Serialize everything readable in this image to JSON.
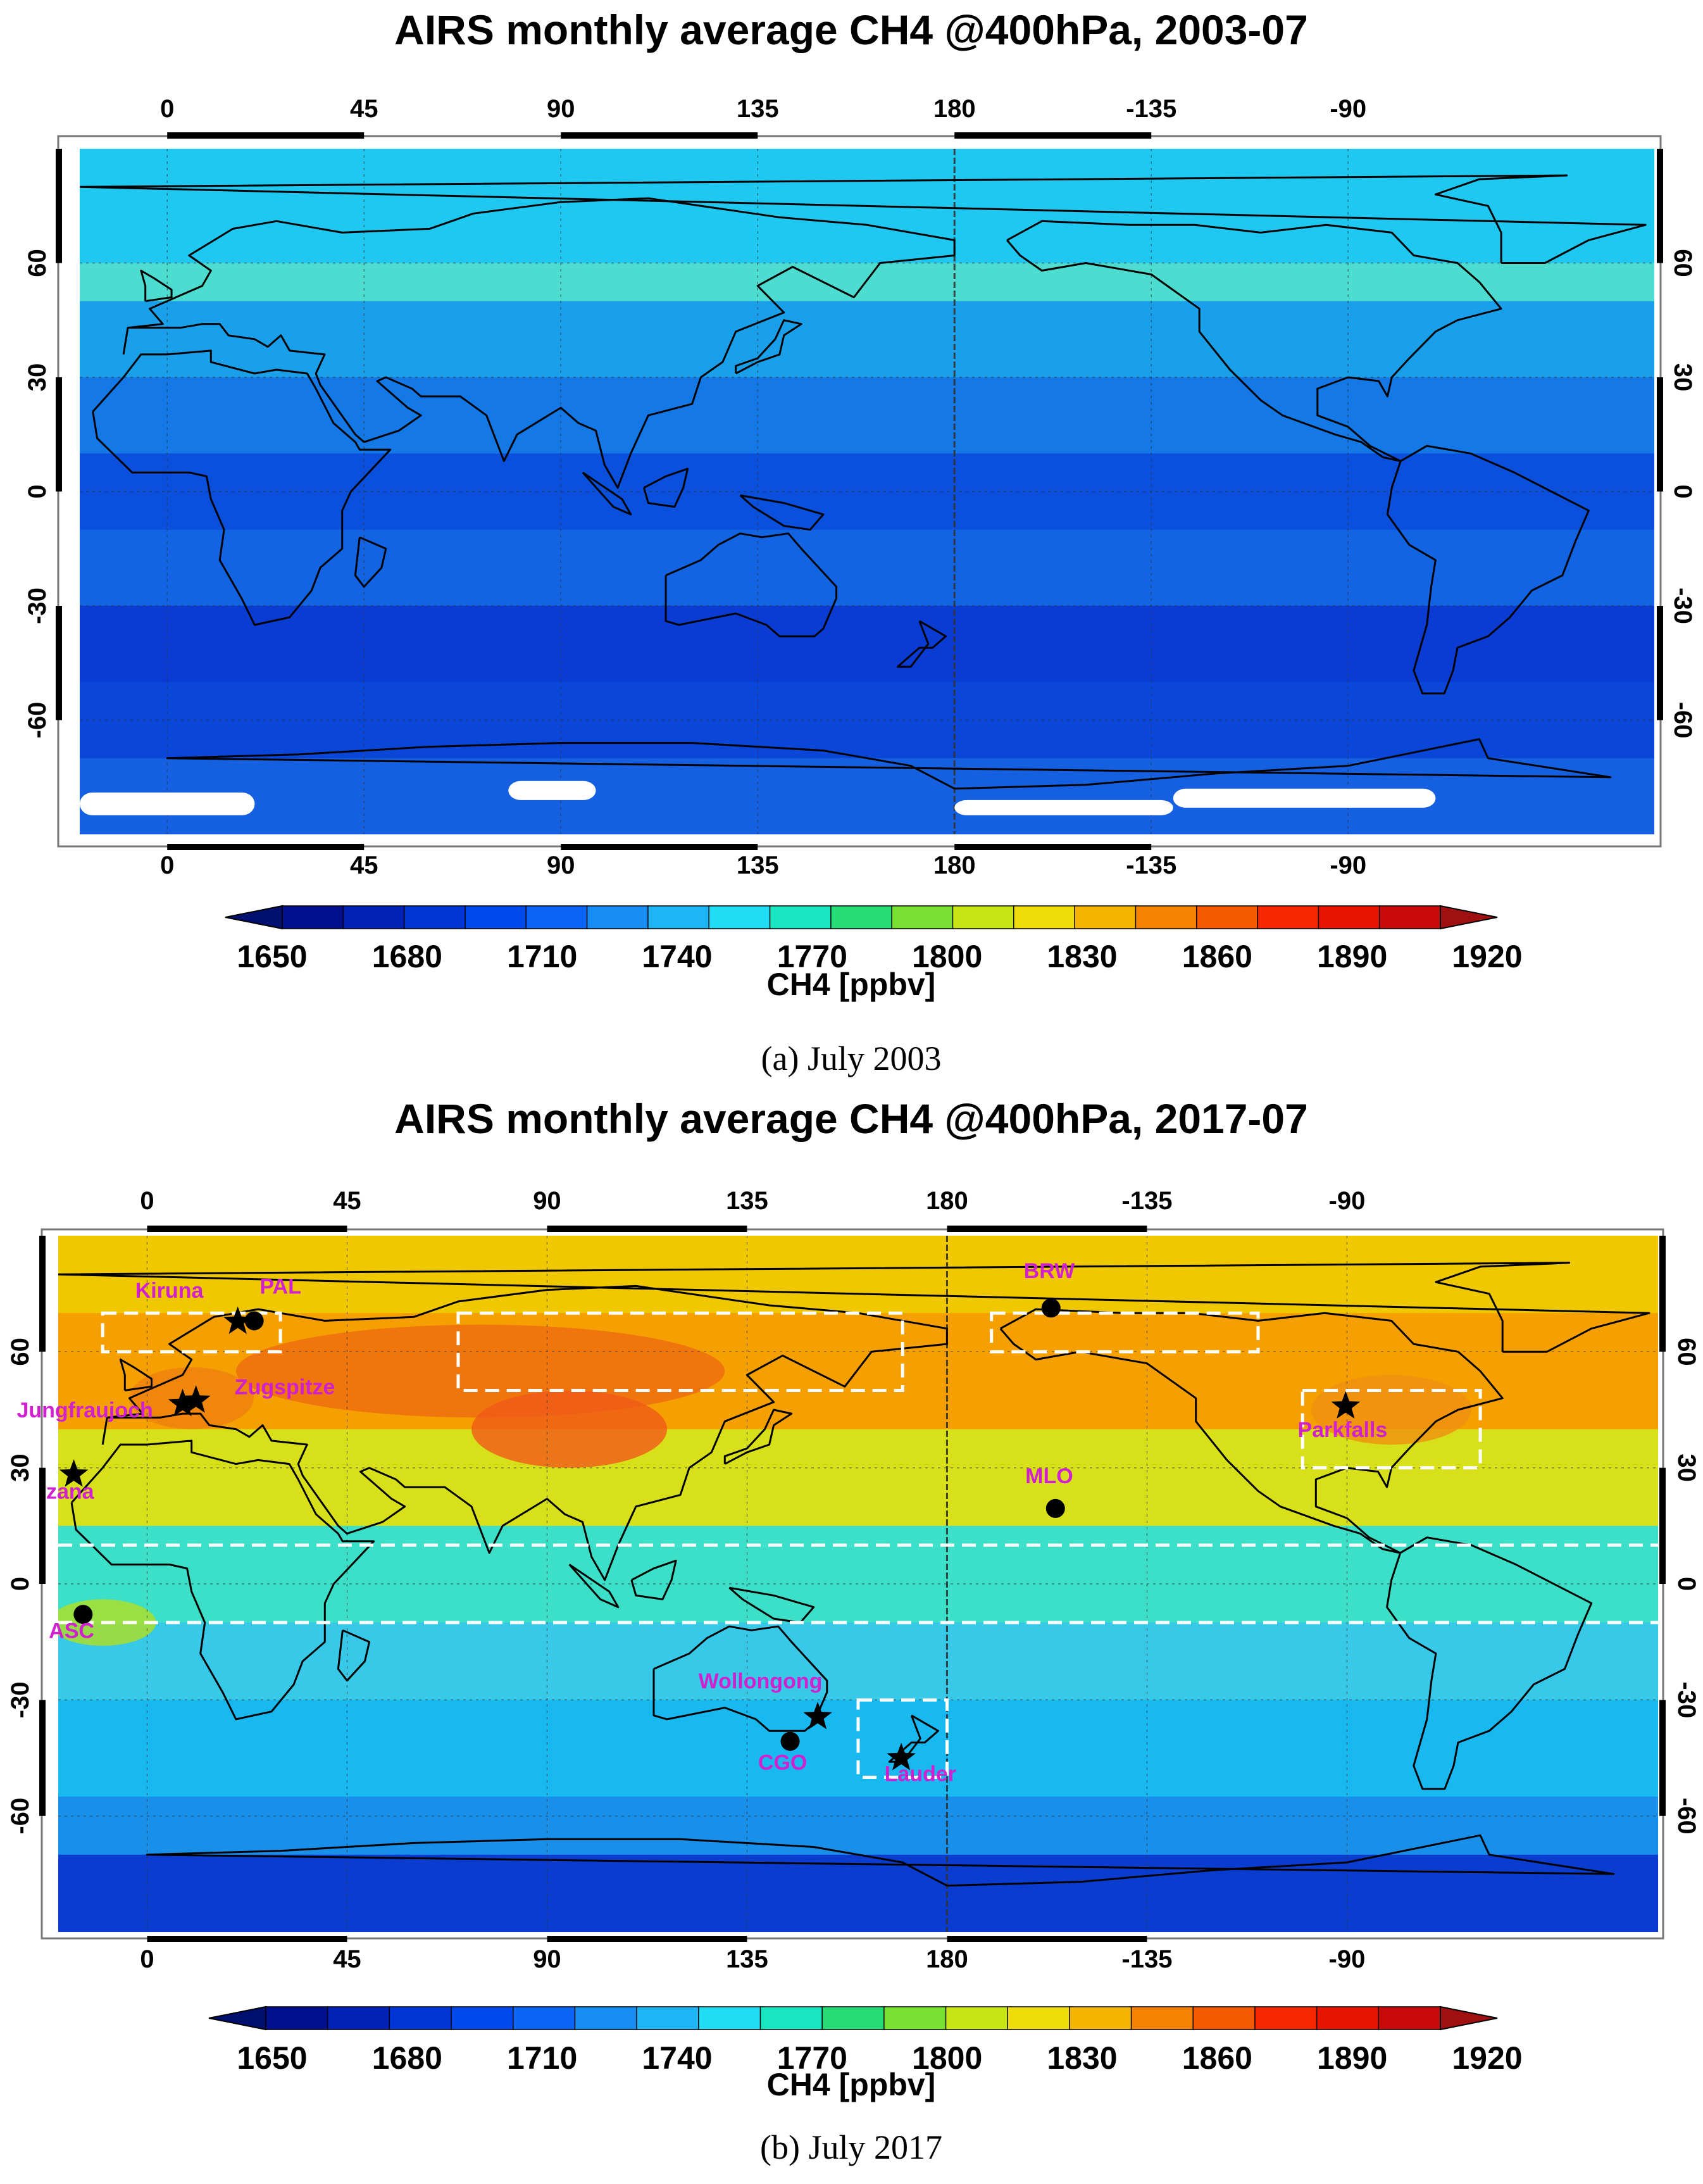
{
  "panels": [
    {
      "id": "a",
      "title": "AIRS monthly average CH4 @400hPa, 2003-07",
      "caption": "(a) July 2003",
      "lon_ticks": [
        "0",
        "45",
        "90",
        "135",
        "180",
        "-135",
        "-90"
      ],
      "lat_ticks": [
        "60",
        "30",
        "0",
        "-30",
        "-60"
      ],
      "bands": [
        {
          "lat": [
            60,
            90
          ],
          "color": "#1ec8f0"
        },
        {
          "lat": [
            50,
            60
          ],
          "color": "#4ddcd0"
        },
        {
          "lat": [
            30,
            50
          ],
          "color": "#1aa0ea"
        },
        {
          "lat": [
            10,
            30
          ],
          "color": "#1478e6"
        },
        {
          "lat": [
            -10,
            10
          ],
          "color": "#0a50dc"
        },
        {
          "lat": [
            -30,
            -10
          ],
          "color": "#1264e2"
        },
        {
          "lat": [
            -50,
            -30
          ],
          "color": "#0a3cd4"
        },
        {
          "lat": [
            -70,
            -50
          ],
          "color": "#0a46d8"
        },
        {
          "lat": [
            -90,
            -70
          ],
          "color": "#1460e0"
        }
      ],
      "blobs": [],
      "stations": [],
      "boxes": [],
      "dashed_lats": []
    },
    {
      "id": "b",
      "title": "AIRS monthly average CH4 @400hPa, 2017-07",
      "caption": "(b) July 2017",
      "lon_ticks": [
        "0",
        "45",
        "90",
        "135",
        "180",
        "-135",
        "-90"
      ],
      "lat_ticks": [
        "60",
        "30",
        "0",
        "-30",
        "-60"
      ],
      "bands": [
        {
          "lat": [
            70,
            90
          ],
          "color": "#f0c800"
        },
        {
          "lat": [
            40,
            70
          ],
          "color": "#f5a000"
        },
        {
          "lat": [
            15,
            40
          ],
          "color": "#d8e01a"
        },
        {
          "lat": [
            -10,
            15
          ],
          "color": "#3ce0c8"
        },
        {
          "lat": [
            -30,
            -10
          ],
          "color": "#38c8e8"
        },
        {
          "lat": [
            -55,
            -30
          ],
          "color": "#18b8f0"
        },
        {
          "lat": [
            -70,
            -55
          ],
          "color": "#1890ea"
        },
        {
          "lat": [
            -90,
            -70
          ],
          "color": "#0a3cd0"
        }
      ],
      "blobs": [
        {
          "lon": 75,
          "lat": 55,
          "rx": 55,
          "ry": 12,
          "color": "#f06a10"
        },
        {
          "lon": 95,
          "lat": 40,
          "rx": 22,
          "ry": 10,
          "color": "#f05a18"
        },
        {
          "lon": 10,
          "lat": 48,
          "rx": 14,
          "ry": 8,
          "color": "#f08010"
        },
        {
          "lon": -80,
          "lat": 45,
          "rx": 18,
          "ry": 9,
          "color": "#f09010"
        },
        {
          "lon": -10,
          "lat": -10,
          "rx": 12,
          "ry": 6,
          "color": "#b0e020"
        }
      ],
      "stations": [
        {
          "name": "Kiruna",
          "lon": 20.4,
          "lat": 67.8,
          "marker": "star",
          "label_lon": 5,
          "label_lat": 74
        },
        {
          "name": "PAL",
          "lon": 24.1,
          "lat": 68.0,
          "marker": "circle",
          "label_lon": 30,
          "label_lat": 75
        },
        {
          "name": "Zugspitze",
          "lon": 11,
          "lat": 47.4,
          "marker": "star",
          "label_lon": 31,
          "label_lat": 49
        },
        {
          "name": "Jungfraujoch",
          "lon": 8,
          "lat": 46.5,
          "marker": "star",
          "label_lon": -14,
          "label_lat": 43
        },
        {
          "name": "Izana",
          "lon": -16.5,
          "lat": 28.3,
          "marker": "star",
          "label_lon": -18,
          "label_lat": 22
        },
        {
          "name": "ASC",
          "lon": -14.4,
          "lat": -7.9,
          "marker": "circle",
          "label_lon": -17,
          "label_lat": -14
        },
        {
          "name": "BRW",
          "lon": -156.6,
          "lat": 71.3,
          "marker": "circle",
          "label_lon": -157,
          "label_lat": 79
        },
        {
          "name": "MLO",
          "lon": -155.6,
          "lat": 19.5,
          "marker": "circle",
          "label_lon": -157,
          "label_lat": 26
        },
        {
          "name": "Parkfalls",
          "lon": -90.3,
          "lat": 45.9,
          "marker": "star",
          "label_lon": -91,
          "label_lat": 38
        },
        {
          "name": "Wollongong",
          "lon": 150.9,
          "lat": -34.4,
          "marker": "star",
          "label_lon": 138,
          "label_lat": -27
        },
        {
          "name": "CGO",
          "lon": 144.7,
          "lat": -40.7,
          "marker": "circle",
          "label_lon": 143,
          "label_lat": -48
        },
        {
          "name": "Lauder",
          "lon": 169.7,
          "lat": -45,
          "marker": "star",
          "label_lon": 174,
          "label_lat": -51
        }
      ],
      "boxes": [
        {
          "lon": [
            -10,
            30
          ],
          "lat": [
            60,
            70
          ]
        },
        {
          "lon": [
            70,
            170
          ],
          "lat": [
            50,
            70
          ]
        },
        {
          "lon": [
            -170,
            -110
          ],
          "lat": [
            60,
            70
          ]
        },
        {
          "lon": [
            -100,
            -60
          ],
          "lat": [
            30,
            50
          ]
        },
        {
          "lon": [
            160,
            180
          ],
          "lat": [
            -50,
            -30
          ]
        }
      ],
      "dashed_lats": [
        10,
        -10
      ]
    }
  ],
  "colorbar": {
    "ticks": [
      "1650",
      "1680",
      "1710",
      "1740",
      "1770",
      "1800",
      "1830",
      "1860",
      "1890",
      "1920"
    ],
    "label": "CH4 [ppbv]",
    "colors": [
      "#00108c",
      "#0022b4",
      "#0036d6",
      "#004aec",
      "#0a64f5",
      "#168cf5",
      "#1eb4f5",
      "#20ddf5",
      "#18e6c0",
      "#28dc78",
      "#78e030",
      "#c8e614",
      "#f0dc0a",
      "#f5b400",
      "#f58200",
      "#f55a00",
      "#f52800",
      "#e61400",
      "#c80a0a"
    ],
    "lowest_color": "#001070",
    "highest_color": "#a01010"
  }
}
